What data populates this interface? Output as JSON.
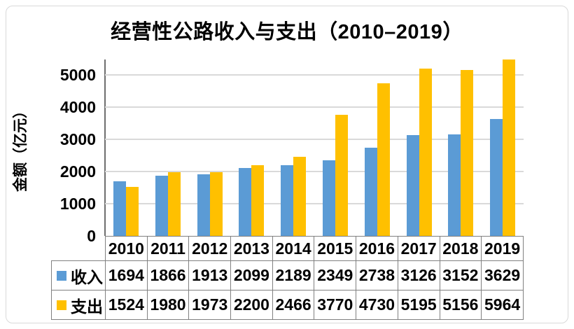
{
  "title": "经营性公路收入与支出（2010–2019）",
  "y_axis": {
    "label": "金额（亿元）",
    "ticks": [
      "0",
      "1000",
      "2000",
      "3000",
      "4000",
      "5000"
    ]
  },
  "chart_data": {
    "type": "bar",
    "title": "经营性公路收入与支出（2010–2019）",
    "categories": [
      "2010",
      "2011",
      "2012",
      "2013",
      "2014",
      "2015",
      "2016",
      "2017",
      "2018",
      "2019"
    ],
    "series": [
      {
        "name": "收入",
        "color": "#5B9BD5",
        "values": [
          1694,
          1866,
          1913,
          2099,
          2189,
          2349,
          2738,
          3126,
          3152,
          3629
        ]
      },
      {
        "name": "支出",
        "color": "#FFC000",
        "values": [
          1524,
          1980,
          1973,
          2200,
          2466,
          3770,
          4730,
          5195,
          5156,
          5964
        ]
      }
    ],
    "xlabel": "",
    "ylabel": "金额（亿元）",
    "ylim": [
      0,
      5500
    ],
    "y_major_unit": 1000,
    "grid": true,
    "legend_position": "table-left",
    "note_clipped_bar": "2019 支出 bar (5964) is clipped at plot top"
  },
  "colors": {
    "income_bar": "#5B9BD5",
    "expense_bar": "#FFC000",
    "gridline": "#D9D9D9",
    "axis_line": "#6E6E6E",
    "table_border": "#808080",
    "frame_border": "#D9D9D9",
    "text": "#000000"
  }
}
